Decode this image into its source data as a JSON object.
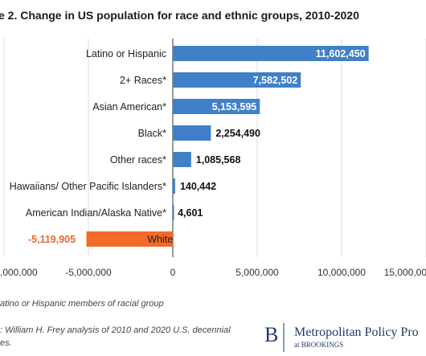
{
  "chart_data": {
    "type": "bar",
    "orientation": "horizontal",
    "title": "e 2. Change in US population for race and ethnic groups, 2010-2020",
    "categories": [
      "Latino or Hispanic",
      "2+ Races*",
      "Asian American*",
      "Black*",
      "Other races*",
      "Hawaiians/ Other Pacific Islanders*",
      "American Indian/Alaska Native*",
      "White"
    ],
    "values": [
      11602450,
      7582502,
      5153595,
      2254490,
      1085568,
      140442,
      4601,
      -5119905
    ],
    "value_labels": [
      "11,602,450",
      "7,582,502",
      "5,153,595",
      "2,254,490",
      "1,085,568",
      "140,442",
      "4,601",
      "-5,119,905"
    ],
    "x_ticks": [
      "-10,000,000",
      "-5,000,000",
      "0",
      "5,000,000",
      "10,000,000",
      "15,000,000"
    ],
    "x_tick_values": [
      -10000000,
      -5000000,
      0,
      5000000,
      10000000,
      15000000
    ],
    "x_tick_labels": [
      ",000,000",
      "-5,000,000",
      "0",
      "5,000,000",
      "10,000,000",
      "15,000,00"
    ],
    "xlim": [
      -10000000,
      15000000
    ],
    "grid": true,
    "colors": {
      "positive": "#3f80c9",
      "negative": "#f26a2a",
      "grid": "#dcdcdc",
      "axis": "#555555"
    },
    "note": "atino or Hispanic members of racial group",
    "source": ": William H. Frey analysis of 2010 and 2020 U.S. decennial",
    "source_line2": "es."
  },
  "branding": {
    "logo_letter": "B",
    "name": "Metropolitan Policy Pro",
    "sub": "at BROOKINGS"
  }
}
